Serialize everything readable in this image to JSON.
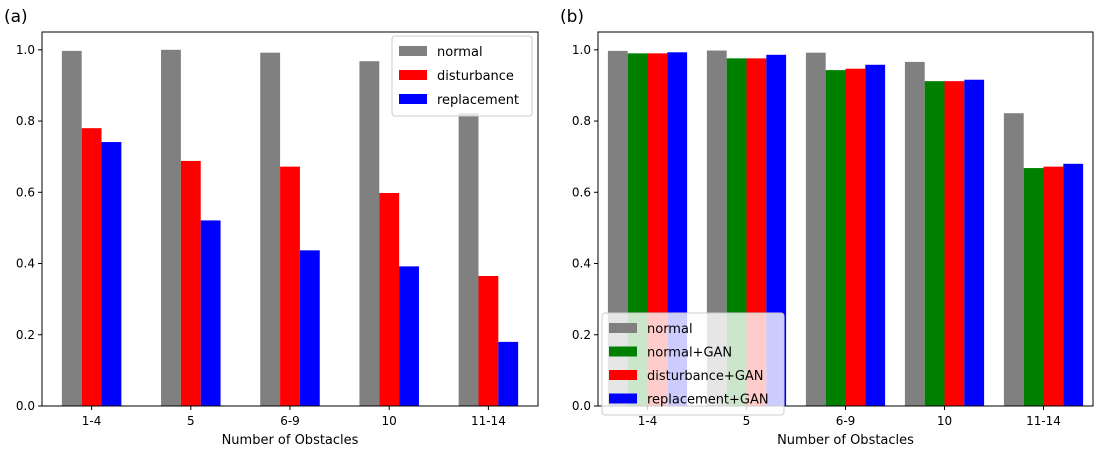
{
  "chart_data": [
    {
      "type": "bar",
      "panel_label": "(a)",
      "categories": [
        "1-4",
        "5",
        "6-9",
        "10",
        "11-14"
      ],
      "series": [
        {
          "name": "normal",
          "color": "#808080",
          "values": [
            0.997,
            1.0,
            0.992,
            0.968,
            0.822
          ]
        },
        {
          "name": "disturbance",
          "color": "#ff0000",
          "values": [
            0.78,
            0.688,
            0.672,
            0.598,
            0.365
          ]
        },
        {
          "name": "replacement",
          "color": "#0000ff",
          "values": [
            0.741,
            0.521,
            0.437,
            0.392,
            0.18
          ]
        }
      ],
      "xlabel": "Number of Obstacles",
      "ylabel": "",
      "ylim": [
        0,
        1.05
      ],
      "yticks": [
        "0.0",
        "0.2",
        "0.4",
        "0.6",
        "0.8",
        "1.0"
      ],
      "legend_position": "top-right",
      "grid": false
    },
    {
      "type": "bar",
      "panel_label": "(b)",
      "categories": [
        "1-4",
        "5",
        "6-9",
        "10",
        "11-14"
      ],
      "series": [
        {
          "name": "normal",
          "color": "#808080",
          "values": [
            0.997,
            0.998,
            0.992,
            0.966,
            0.822
          ]
        },
        {
          "name": "normal+GAN",
          "color": "#008000",
          "values": [
            0.99,
            0.976,
            0.943,
            0.912,
            0.668
          ]
        },
        {
          "name": "disturbance+GAN",
          "color": "#ff0000",
          "values": [
            0.99,
            0.976,
            0.947,
            0.912,
            0.672
          ]
        },
        {
          "name": "replacement+GAN",
          "color": "#0000ff",
          "values": [
            0.993,
            0.986,
            0.958,
            0.916,
            0.68
          ]
        }
      ],
      "xlabel": "Number of Obstacles",
      "ylabel": "",
      "ylim": [
        0,
        1.05
      ],
      "yticks": [
        "0.0",
        "0.2",
        "0.4",
        "0.6",
        "0.8",
        "1.0"
      ],
      "legend_position": "bottom-left",
      "grid": false
    }
  ]
}
